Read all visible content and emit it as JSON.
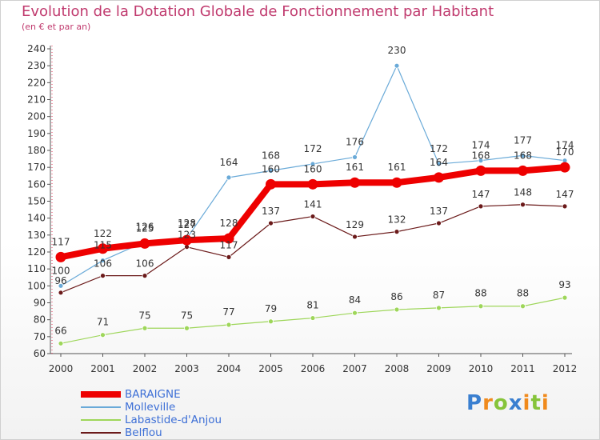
{
  "logo": {
    "text": "Proxiti",
    "letters": [
      {
        "char": "P",
        "color": "#3a7fd0"
      },
      {
        "char": "r",
        "color": "#f08a1c"
      },
      {
        "char": "o",
        "color": "#86c43a"
      },
      {
        "char": "x",
        "color": "#3a7fd0"
      },
      {
        "char": "i",
        "color": "#f08a1c"
      },
      {
        "char": "t",
        "color": "#86c43a"
      },
      {
        "char": "i",
        "color": "#f08a1c"
      }
    ]
  },
  "chart_data": {
    "type": "line",
    "title": "Evolution de la Dotation Globale de Fonctionnement par Habitant",
    "subtitle": "(en € et par an)",
    "xlabel": "",
    "ylabel": "",
    "x": [
      "2000",
      "2001",
      "2002",
      "2003",
      "2004",
      "2005",
      "2006",
      "2007",
      "2008",
      "2009",
      "2010",
      "2011",
      "2012"
    ],
    "ylim": [
      60,
      240
    ],
    "ytick_step": 10,
    "grid": false,
    "legend_position": "bottom-left",
    "series": [
      {
        "name": "BARAIGNE",
        "color": "#ee0000",
        "values": [
          117,
          122,
          125,
          127,
          128,
          160,
          160,
          161,
          161,
          164,
          168,
          168,
          170
        ]
      },
      {
        "name": "Molleville",
        "color": "#6aaad8",
        "values": [
          100,
          115,
          126,
          128,
          164,
          168,
          172,
          176,
          230,
          172,
          174,
          177,
          174
        ]
      },
      {
        "name": "Labastide-d'Anjou",
        "color": "#9ed65a",
        "values": [
          66,
          71,
          75,
          75,
          77,
          79,
          81,
          84,
          86,
          87,
          88,
          88,
          93
        ]
      },
      {
        "name": "Belflou",
        "color": "#6b1a1a",
        "values": [
          96,
          106,
          106,
          123,
          117,
          137,
          141,
          129,
          132,
          137,
          147,
          148,
          147
        ]
      }
    ]
  }
}
